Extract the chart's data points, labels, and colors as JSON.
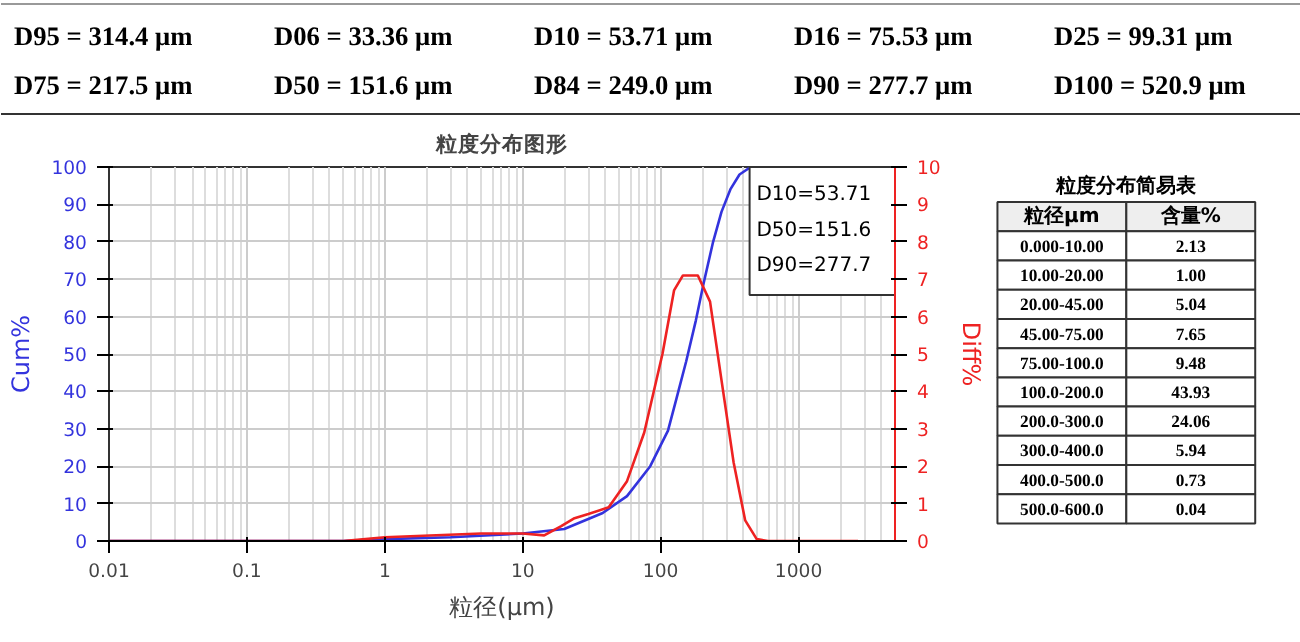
{
  "chart_data": [
    {
      "type": "other",
      "annotations": [
        "D95 = 314.4 μm",
        "D06 = 33.36 μm",
        "D10 = 53.71 μm",
        "D16 = 75.53 μm",
        "D25 = 99.31 μm",
        "D75 = 217.5 μm",
        "D50 = 151.6 μm",
        "D84 = 249.0 μm",
        "D90 = 277.7 μm",
        "D100 = 520.9 μm"
      ]
    },
    {
      "type": "line",
      "title": "粒度分布图形",
      "xlabel": "粒径(μm)",
      "ylabel": "Cum%",
      "y2label": "Diff%",
      "log": "x",
      "grid": true,
      "xlim": [
        0.01,
        5000
      ],
      "xticks": [
        0.01,
        0.1,
        1,
        10,
        100,
        1000
      ],
      "ylim": [
        0,
        100
      ],
      "yticks": [
        0,
        10,
        20,
        30,
        40,
        50,
        60,
        70,
        80,
        90,
        100
      ],
      "y2lim": [
        0,
        10
      ],
      "y2ticks": [
        0,
        1,
        2,
        3,
        4,
        5,
        6,
        7,
        8,
        9,
        10
      ],
      "annotations": [
        "D10=53.71",
        "D50=151.6",
        "D90=277.7"
      ],
      "series": [
        {
          "color": "#3333dd",
          "x": [
            0.01,
            0.5,
            1,
            3,
            10,
            20,
            38,
            57,
            84,
            113,
            130,
            153,
            180,
            205,
            240,
            276,
            320,
            373,
            450
          ],
          "values": [
            0,
            0,
            0.5,
            1,
            2,
            3.2,
            7.5,
            12,
            20,
            29.5,
            38,
            48,
            59,
            69,
            80,
            88,
            94,
            98,
            100
          ]
        },
        {
          "color": "#ee2222",
          "axis": "y2",
          "x": [
            0.01,
            0.5,
            1,
            5,
            10,
            14.3,
            19,
            23.4,
            29.9,
            42,
            57,
            76,
            103,
            125,
            145,
            186,
            228,
            276,
            338,
            410,
            497,
            600,
            2700
          ],
          "values": [
            0,
            0,
            0.1,
            0.2,
            0.2,
            0.15,
            0.4,
            0.6,
            0.72,
            0.9,
            1.6,
            2.9,
            5,
            6.7,
            7.1,
            7.1,
            6.4,
            4.3,
            2.1,
            0.55,
            0.05,
            0,
            0
          ]
        }
      ]
    },
    {
      "type": "other",
      "title": "粒度分布简易表",
      "xlabel": "粒径μm",
      "ylabel": "含量%",
      "data_labels": true,
      "categories": [
        "0.000-10.00",
        "10.00-20.00",
        "20.00-45.00",
        "45.00-75.00",
        "75.00-100.0",
        "100.0-200.0",
        "200.0-300.0",
        "300.0-400.0",
        "400.0-500.0",
        "500.0-600.0"
      ],
      "values": [
        2.13,
        1.0,
        5.04,
        7.65,
        9.48,
        43.93,
        24.06,
        5.94,
        0.73,
        0.04
      ],
      "value_labels": [
        "2.13",
        "1.00",
        "5.04",
        "7.65",
        "9.48",
        "43.93",
        "24.06",
        "5.94",
        "0.73",
        "0.04"
      ]
    }
  ]
}
